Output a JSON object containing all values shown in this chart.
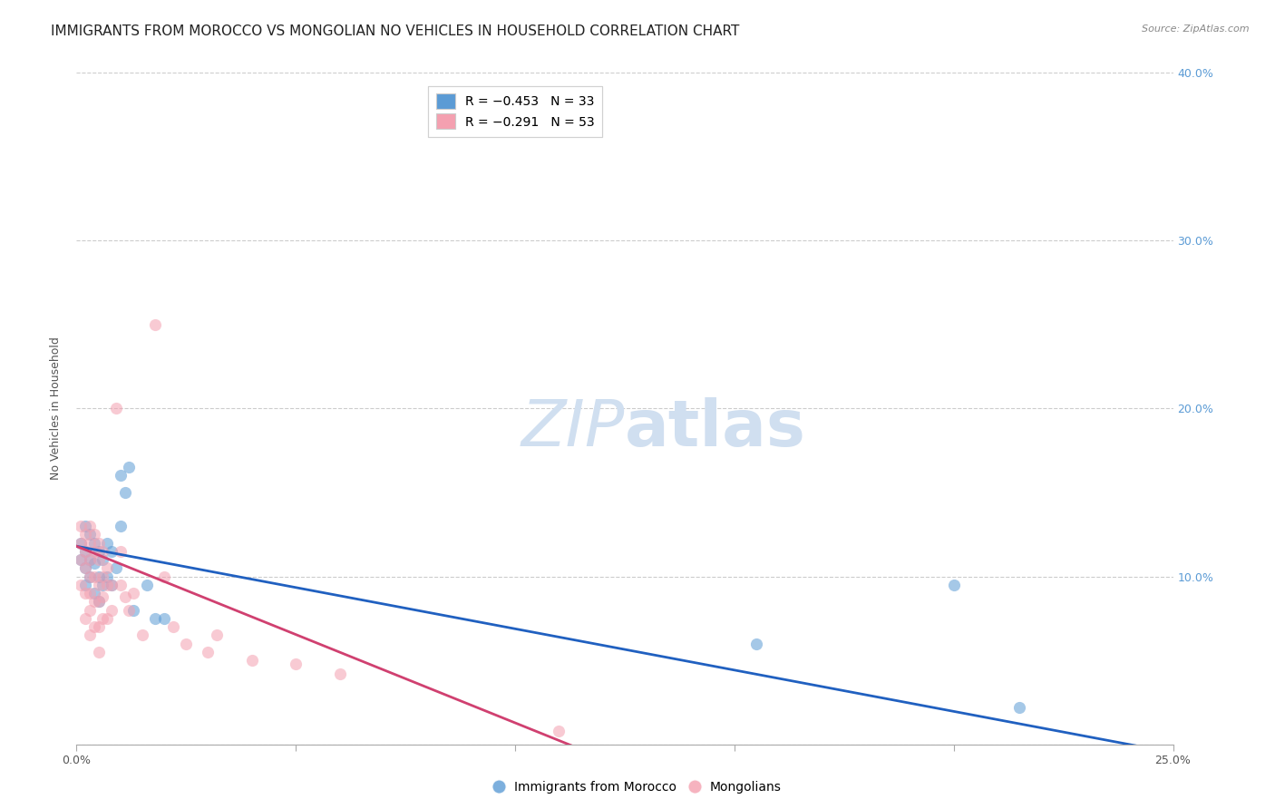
{
  "title": "IMMIGRANTS FROM MOROCCO VS MONGOLIAN NO VEHICLES IN HOUSEHOLD CORRELATION CHART",
  "source": "Source: ZipAtlas.com",
  "ylabel": "No Vehicles in Household",
  "x_min": 0.0,
  "x_max": 0.25,
  "y_min": 0.0,
  "y_max": 0.4,
  "x_ticks": [
    0.0,
    0.05,
    0.1,
    0.15,
    0.2,
    0.25
  ],
  "y_ticks": [
    0.0,
    0.1,
    0.2,
    0.3,
    0.4
  ],
  "legend_entries": [
    {
      "label": "R = −0.453   N = 33",
      "color": "#a8c8f0"
    },
    {
      "label": "R = −0.291   N = 53",
      "color": "#f0a8b8"
    }
  ],
  "legend_bottom": [
    {
      "label": "Immigrants from Morocco",
      "color": "#a8c8f0"
    },
    {
      "label": "Mongolians",
      "color": "#f0a8b8"
    }
  ],
  "blue_scatter_x": [
    0.001,
    0.001,
    0.002,
    0.002,
    0.002,
    0.002,
    0.003,
    0.003,
    0.003,
    0.004,
    0.004,
    0.004,
    0.005,
    0.005,
    0.005,
    0.006,
    0.006,
    0.007,
    0.007,
    0.008,
    0.008,
    0.009,
    0.01,
    0.01,
    0.011,
    0.012,
    0.013,
    0.016,
    0.018,
    0.02,
    0.155,
    0.2,
    0.215
  ],
  "blue_scatter_y": [
    0.12,
    0.11,
    0.13,
    0.115,
    0.105,
    0.095,
    0.125,
    0.11,
    0.1,
    0.12,
    0.108,
    0.09,
    0.115,
    0.1,
    0.085,
    0.11,
    0.095,
    0.12,
    0.1,
    0.115,
    0.095,
    0.105,
    0.13,
    0.16,
    0.15,
    0.165,
    0.08,
    0.095,
    0.075,
    0.075,
    0.06,
    0.095,
    0.022
  ],
  "pink_scatter_x": [
    0.001,
    0.001,
    0.001,
    0.001,
    0.002,
    0.002,
    0.002,
    0.002,
    0.002,
    0.003,
    0.003,
    0.003,
    0.003,
    0.003,
    0.003,
    0.003,
    0.004,
    0.004,
    0.004,
    0.004,
    0.004,
    0.005,
    0.005,
    0.005,
    0.005,
    0.005,
    0.005,
    0.006,
    0.006,
    0.006,
    0.006,
    0.007,
    0.007,
    0.007,
    0.008,
    0.008,
    0.009,
    0.01,
    0.01,
    0.011,
    0.012,
    0.013,
    0.015,
    0.018,
    0.02,
    0.022,
    0.025,
    0.03,
    0.032,
    0.04,
    0.05,
    0.06,
    0.11
  ],
  "pink_scatter_y": [
    0.13,
    0.12,
    0.11,
    0.095,
    0.125,
    0.115,
    0.105,
    0.09,
    0.075,
    0.13,
    0.12,
    0.11,
    0.1,
    0.09,
    0.08,
    0.065,
    0.125,
    0.115,
    0.1,
    0.085,
    0.07,
    0.12,
    0.11,
    0.095,
    0.085,
    0.07,
    0.055,
    0.115,
    0.1,
    0.088,
    0.075,
    0.105,
    0.095,
    0.075,
    0.095,
    0.08,
    0.2,
    0.115,
    0.095,
    0.088,
    0.08,
    0.09,
    0.065,
    0.25,
    0.1,
    0.07,
    0.06,
    0.055,
    0.065,
    0.05,
    0.048,
    0.042,
    0.008
  ],
  "blue_line_x": [
    0.0,
    0.25
  ],
  "blue_line_y": [
    0.118,
    -0.005
  ],
  "pink_line_x": [
    0.0,
    0.115
  ],
  "pink_line_y": [
    0.118,
    -0.003
  ],
  "blue_color": "#5b9bd5",
  "pink_color": "#f4a0b0",
  "blue_line_color": "#2060c0",
  "pink_line_color": "#d04070",
  "scatter_alpha": 0.55,
  "scatter_size": 90,
  "grid_color": "#cccccc",
  "grid_style": "--",
  "background_color": "#ffffff",
  "title_fontsize": 11,
  "axis_label_fontsize": 9,
  "tick_fontsize": 9,
  "right_tick_color": "#5b9bd5",
  "watermark_color": "#d0dff0",
  "watermark_fontsize": 52
}
